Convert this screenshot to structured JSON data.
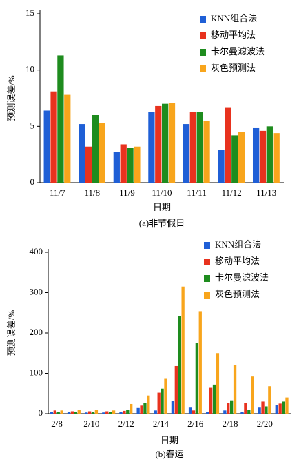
{
  "chart_data": [
    {
      "type": "bar",
      "xlabel": "日期",
      "ylabel": "预测误差/%",
      "caption": "(a)非节假日",
      "categories": [
        "11/7",
        "11/8",
        "11/9",
        "11/10",
        "11/11",
        "11/12",
        "11/13"
      ],
      "ylim": [
        0,
        15
      ],
      "yticks": [
        0,
        5,
        10,
        15
      ],
      "legend": "upper right",
      "series": [
        {
          "name": "KNN组合法",
          "color": "#1f5fd6",
          "values": [
            6.4,
            5.2,
            2.7,
            6.3,
            5.2,
            2.9,
            4.9
          ]
        },
        {
          "name": "移动平均法",
          "color": "#e8321e",
          "values": [
            8.1,
            3.2,
            3.4,
            6.8,
            6.3,
            6.7,
            4.6
          ]
        },
        {
          "name": "卡尔曼滤波法",
          "color": "#1e8c1e",
          "values": [
            11.3,
            6.0,
            3.1,
            7.0,
            6.3,
            4.2,
            5.0
          ]
        },
        {
          "name": "灰色预测法",
          "color": "#f8a51c",
          "values": [
            7.8,
            5.3,
            3.2,
            7.1,
            5.5,
            4.5,
            4.4
          ]
        }
      ]
    },
    {
      "type": "bar",
      "xlabel": "日期",
      "ylabel": "预测误差/%",
      "caption": "(b)春运",
      "categories": [
        "2/8",
        null,
        "2/10",
        null,
        "2/12",
        null,
        "2/14",
        null,
        "2/16",
        null,
        "2/18",
        null,
        "2/20",
        null
      ],
      "ylim": [
        0,
        400
      ],
      "yticks": [
        0,
        100,
        200,
        300,
        400
      ],
      "legend": "upper right",
      "series": [
        {
          "name": "KNN组合法",
          "color": "#1f5fd6",
          "values": [
            5,
            4,
            3,
            3,
            5,
            14,
            8,
            32,
            15,
            5,
            8,
            5,
            15,
            22
          ]
        },
        {
          "name": "移动平均法",
          "color": "#e8321e",
          "values": [
            8,
            6,
            6,
            6,
            7,
            20,
            52,
            118,
            8,
            64,
            26,
            27,
            30,
            25
          ]
        },
        {
          "name": "卡尔曼滤波法",
          "color": "#1e8c1e",
          "values": [
            5,
            5,
            4,
            4,
            10,
            27,
            62,
            242,
            175,
            72,
            33,
            10,
            18,
            30
          ]
        },
        {
          "name": "灰色预测法",
          "color": "#f8a51c",
          "values": [
            8,
            10,
            10,
            8,
            24,
            45,
            88,
            315,
            254,
            150,
            120,
            92,
            68,
            40
          ]
        }
      ]
    }
  ]
}
